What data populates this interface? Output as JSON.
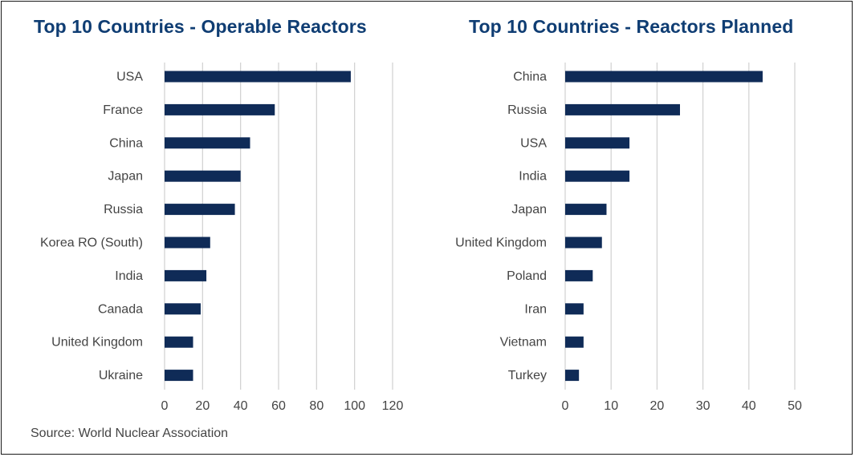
{
  "footer": {
    "source": "Source: World Nuclear Association"
  },
  "colors": {
    "bar": "#0f2b57",
    "grid": "#d0d0d0",
    "title": "#0f3d73",
    "text": "#444444"
  },
  "chart_data": [
    {
      "type": "bar",
      "orientation": "horizontal",
      "title": "Top 10 Countries - Operable Reactors",
      "xlabel": "",
      "ylabel": "",
      "categories": [
        "USA",
        "France",
        "China",
        "Japan",
        "Russia",
        "Korea RO (South)",
        "India",
        "Canada",
        "United Kingdom",
        "Ukraine"
      ],
      "values": [
        98,
        58,
        45,
        40,
        37,
        24,
        22,
        19,
        15,
        15
      ],
      "xlim": [
        0,
        120
      ],
      "xticks": [
        0,
        20,
        40,
        60,
        80,
        100,
        120
      ],
      "grid": true
    },
    {
      "type": "bar",
      "orientation": "horizontal",
      "title": "Top 10 Countries - Reactors Planned",
      "xlabel": "",
      "ylabel": "",
      "categories": [
        "China",
        "Russia",
        "USA",
        "India",
        "Japan",
        "United Kingdom",
        "Poland",
        "Iran",
        "Vietnam",
        "Turkey"
      ],
      "values": [
        43,
        25,
        14,
        14,
        9,
        8,
        6,
        4,
        4,
        3
      ],
      "xlim": [
        0,
        50
      ],
      "xticks": [
        0,
        10,
        20,
        30,
        40,
        50
      ],
      "grid": true
    }
  ]
}
